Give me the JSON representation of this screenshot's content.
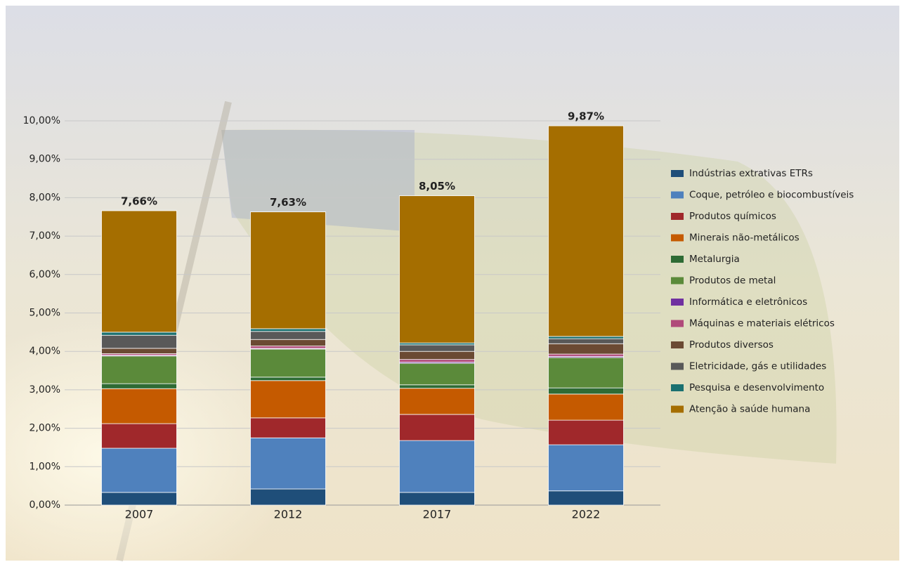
{
  "chart_data": {
    "type": "stacked_bar",
    "categories": [
      "2007",
      "2012",
      "2017",
      "2022"
    ],
    "series": [
      {
        "name": "Indústrias extrativas ETRs",
        "color": "#1f4e79",
        "values": [
          0.33,
          0.42,
          0.33,
          0.37
        ]
      },
      {
        "name": "Coque, petróleo e biocombustíveis",
        "color": "#4f81bd",
        "values": [
          1.15,
          1.33,
          1.35,
          1.2
        ]
      },
      {
        "name": "Produtos químicos",
        "color": "#a0282b",
        "values": [
          0.64,
          0.52,
          0.68,
          0.64
        ]
      },
      {
        "name": "Minerais não-metálicos",
        "color": "#c55a00",
        "values": [
          0.91,
          0.97,
          0.68,
          0.68
        ]
      },
      {
        "name": "Metalurgia",
        "color": "#2e6b34",
        "values": [
          0.13,
          0.09,
          0.09,
          0.16
        ]
      },
      {
        "name": "Produtos de metal",
        "color": "#5b8a3a",
        "values": [
          0.72,
          0.73,
          0.56,
          0.79
        ]
      },
      {
        "name": "Informática e eletrônicos",
        "color": "#7030a0",
        "values": [
          0.02,
          0.02,
          0.03,
          0.03
        ]
      },
      {
        "name": "Máquinas e materiais elétricos",
        "color": "#b04a7a",
        "values": [
          0.04,
          0.06,
          0.07,
          0.06
        ]
      },
      {
        "name": "Produtos diversos",
        "color": "#6b4a33",
        "values": [
          0.14,
          0.17,
          0.21,
          0.27
        ]
      },
      {
        "name": "Eletricidade, gás e utilidades",
        "color": "#595959",
        "values": [
          0.34,
          0.21,
          0.17,
          0.13
        ]
      },
      {
        "name": "Pesquisa e desenvolvimento",
        "color": "#1a7070",
        "values": [
          0.08,
          0.07,
          0.05,
          0.06
        ]
      },
      {
        "name": "Atenção à saúde humana",
        "color": "#a56e00",
        "values": [
          3.16,
          3.04,
          3.83,
          5.48
        ]
      }
    ],
    "totals": [
      7.66,
      7.63,
      8.05,
      9.87
    ],
    "total_labels": [
      "7,66%",
      "7,63%",
      "8,05%",
      "9,87%"
    ],
    "ylim": [
      0,
      10
    ],
    "yticks": [
      {
        "value": 0,
        "label": "0,00%"
      },
      {
        "value": 1,
        "label": "1,00%"
      },
      {
        "value": 2,
        "label": "2,00%"
      },
      {
        "value": 3,
        "label": "3,00%"
      },
      {
        "value": 4,
        "label": "4,00%"
      },
      {
        "value": 5,
        "label": "5,00%"
      },
      {
        "value": 6,
        "label": "6,00%"
      },
      {
        "value": 7,
        "label": "7,00%"
      },
      {
        "value": 8,
        "label": "8,00%"
      },
      {
        "value": 9,
        "label": "9,00%"
      },
      {
        "value": 10,
        "label": "10,00%"
      }
    ],
    "grid": true,
    "legend": "right"
  }
}
